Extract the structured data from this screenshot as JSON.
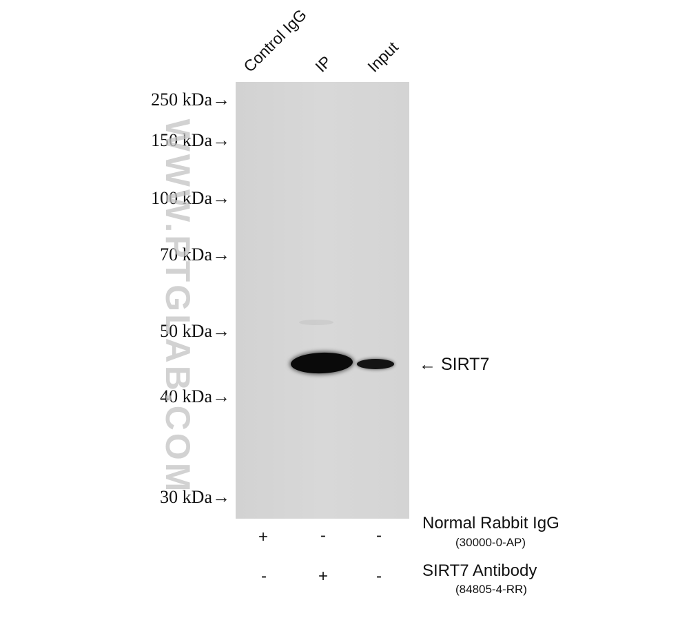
{
  "lanes": [
    "Control IgG",
    "IP",
    "Input"
  ],
  "markers": [
    "250 kDa→",
    "150 kDa→",
    "100 kDa→",
    "70 kDa→",
    "50 kDa→",
    "40 kDa→",
    "30 kDa→"
  ],
  "watermark": "WWW.PTGLAB.COM",
  "target_label": "← SIRT7",
  "conditions": [
    {
      "name": "Normal Rabbit IgG",
      "catalog": "(30000-0-AP)",
      "signs": [
        "+",
        "-",
        "-"
      ]
    },
    {
      "name": "SIRT7 Antibody",
      "catalog": "(84805-4-RR)",
      "signs": [
        "-",
        "+",
        "-"
      ]
    }
  ],
  "colors": {
    "blot_background": "#d6d6d6",
    "band": "#0a0a0a",
    "watermark": "#c4c4c4"
  }
}
